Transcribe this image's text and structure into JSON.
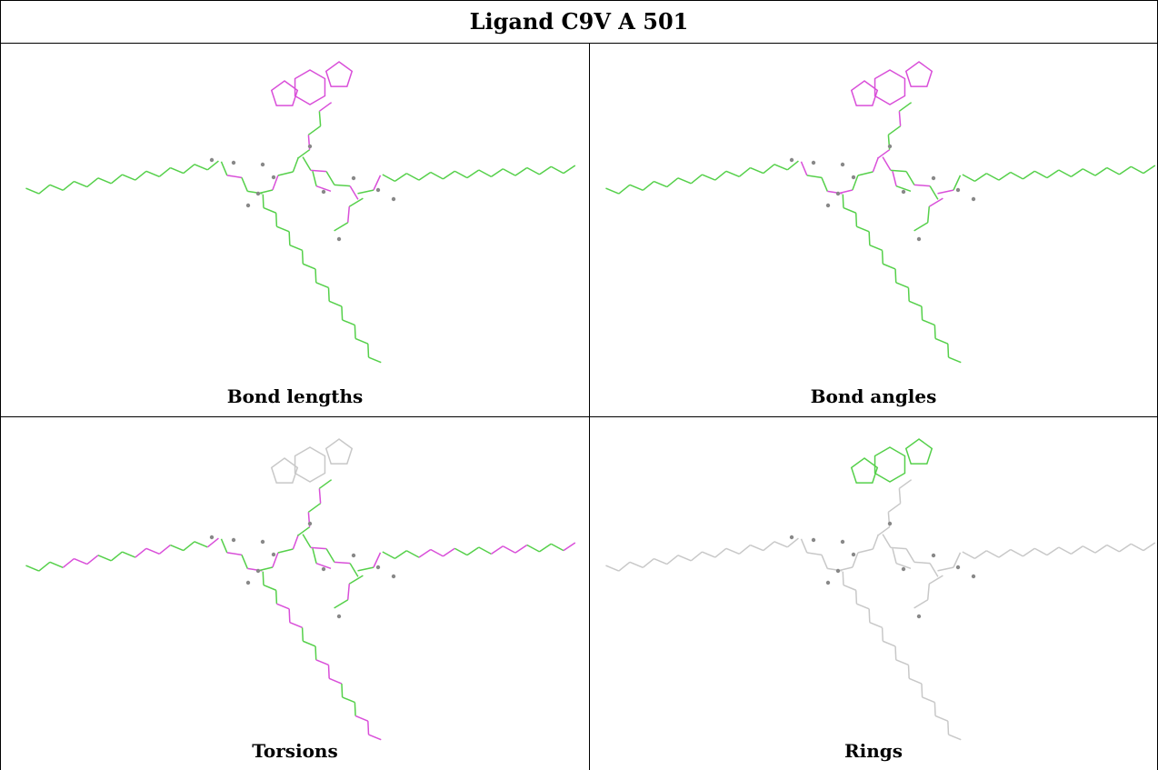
{
  "title": "Ligand C9V A 501",
  "panels": [
    {
      "caption": "Bond lengths"
    },
    {
      "caption": "Bond angles"
    },
    {
      "caption": "Torsions"
    },
    {
      "caption": "Rings"
    }
  ]
}
